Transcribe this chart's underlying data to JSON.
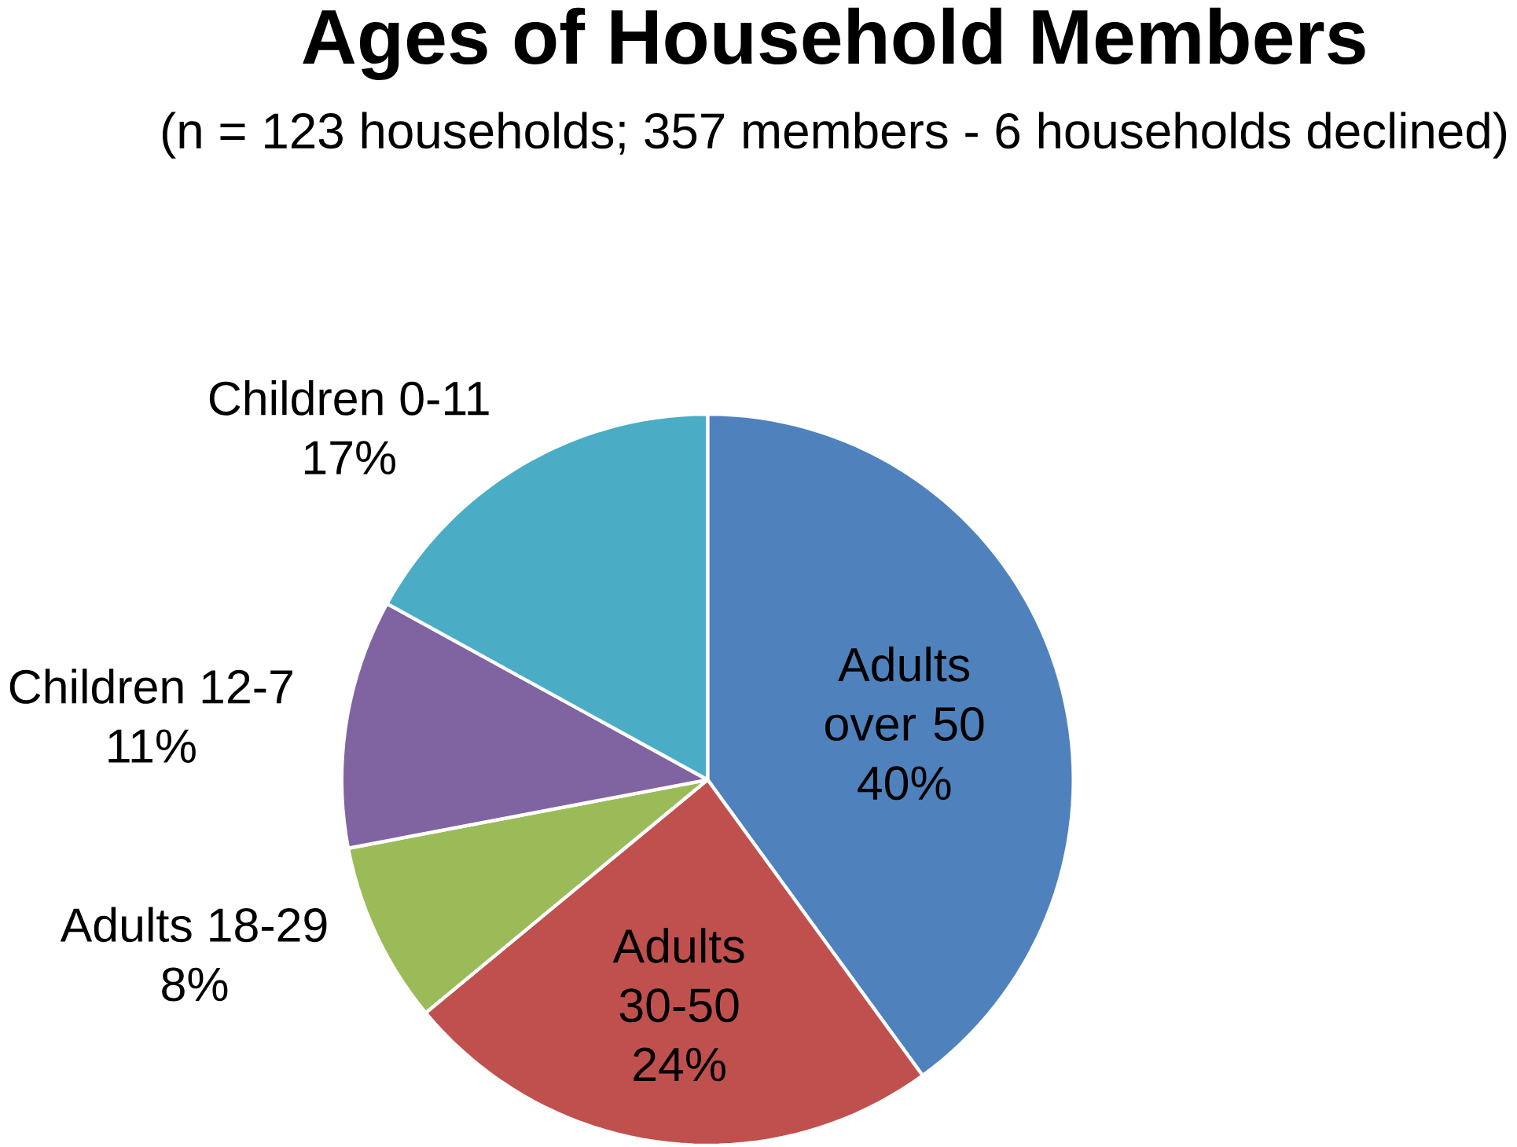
{
  "chart_data": {
    "type": "pie",
    "title": "Ages of Household Members",
    "subtitle": "(n = 123 households; 357 members - 6 households declined)",
    "categories": [
      "Adults over 50",
      "Adults 30-50",
      "Adults 18-29",
      "Children 12-7",
      "Children 0-11"
    ],
    "values": [
      40,
      24,
      8,
      11,
      17
    ],
    "value_labels": [
      "40%",
      "24%",
      "8%",
      "11%",
      "17%"
    ],
    "colors": [
      "#4f81bd",
      "#c0504d",
      "#9bbb59",
      "#8064a2",
      "#4bacc6"
    ]
  }
}
